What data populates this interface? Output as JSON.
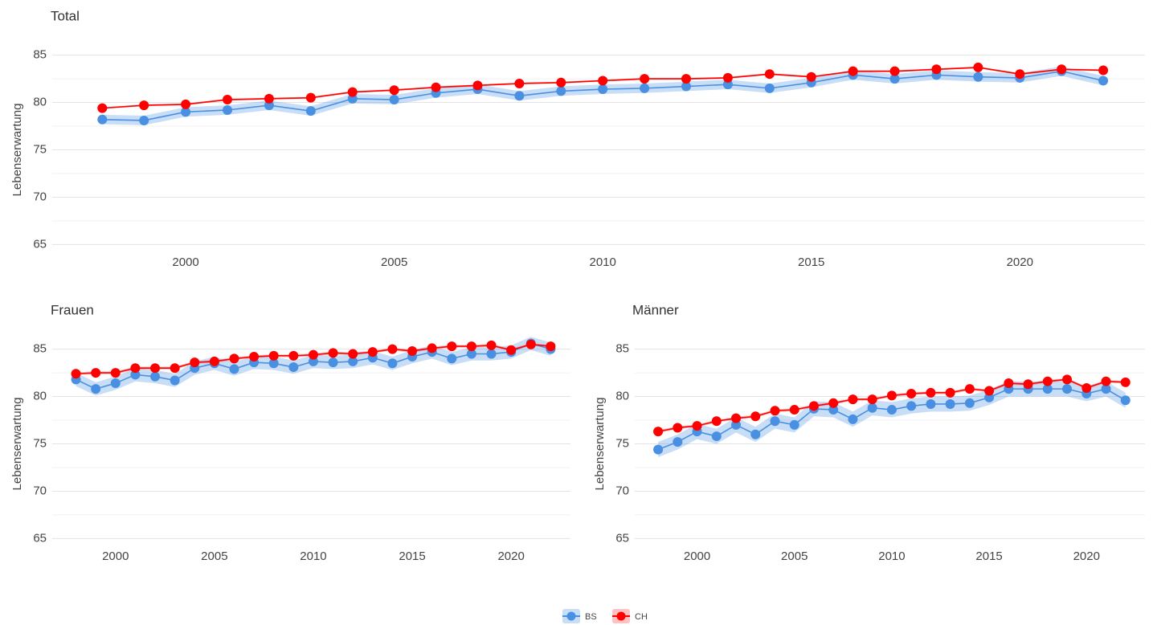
{
  "legend": {
    "items": [
      {
        "name": "BS",
        "color": "#4a90e2",
        "band": "rgba(74,144,226,0.3)"
      },
      {
        "name": "CH",
        "color": "#ff0000",
        "band": "rgba(255,80,80,0.35)"
      }
    ],
    "position": "bottom"
  },
  "chart_data": [
    {
      "type": "line",
      "title": "Total",
      "ylabel": "Lebenserwartung",
      "x": [
        1998,
        1999,
        2000,
        2001,
        2002,
        2003,
        2004,
        2005,
        2006,
        2007,
        2008,
        2009,
        2010,
        2011,
        2012,
        2013,
        2014,
        2015,
        2016,
        2017,
        2018,
        2019,
        2020,
        2021,
        2022
      ],
      "series": [
        {
          "values": [
            78.2,
            78.1,
            79.0,
            79.2,
            79.7,
            79.1,
            80.4,
            80.3,
            81.0,
            81.4,
            80.7,
            81.2,
            81.4,
            81.5,
            81.7,
            81.9,
            81.5,
            82.1,
            82.9,
            82.5,
            82.9,
            82.7,
            82.6,
            83.3,
            82.3
          ],
          "ci": 0.5
        },
        {
          "values": [
            79.4,
            79.7,
            79.8,
            80.3,
            80.4,
            80.5,
            81.1,
            81.3,
            81.6,
            81.8,
            82.0,
            82.1,
            82.3,
            82.5,
            82.5,
            82.6,
            83.0,
            82.7,
            83.3,
            83.3,
            83.5,
            83.7,
            83.0,
            83.5,
            83.4
          ],
          "ci": 0.1
        }
      ],
      "xlim": [
        1996.8,
        2023.0
      ],
      "xticks": [
        2000,
        2005,
        2010,
        2015,
        2020
      ],
      "ylim": [
        64.1,
        85.9
      ],
      "yticks": [
        65,
        70,
        75,
        80,
        85
      ],
      "minor_yticks": [
        67.5,
        72.5,
        77.5,
        82.5
      ],
      "grid": true
    },
    {
      "type": "line",
      "title": "Frauen",
      "ylabel": "Lebenserwartung",
      "x": [
        1998,
        1999,
        2000,
        2001,
        2002,
        2003,
        2004,
        2005,
        2006,
        2007,
        2008,
        2009,
        2010,
        2011,
        2012,
        2013,
        2014,
        2015,
        2016,
        2017,
        2018,
        2019,
        2020,
        2021,
        2022
      ],
      "series": [
        {
          "values": [
            81.8,
            80.8,
            81.4,
            82.3,
            82.1,
            81.7,
            83.0,
            83.5,
            82.9,
            83.6,
            83.5,
            83.1,
            83.7,
            83.6,
            83.7,
            84.1,
            83.5,
            84.2,
            84.7,
            84.0,
            84.5,
            84.5,
            84.7,
            85.6,
            85.0
          ],
          "ci": 0.7
        },
        {
          "values": [
            82.4,
            82.5,
            82.5,
            83.0,
            83.0,
            83.0,
            83.6,
            83.7,
            84.0,
            84.2,
            84.3,
            84.3,
            84.4,
            84.6,
            84.5,
            84.7,
            85.0,
            84.8,
            85.1,
            85.3,
            85.3,
            85.4,
            84.9,
            85.5,
            85.3
          ],
          "ci": 0.15
        }
      ],
      "xlim": [
        1996.8,
        2023.0
      ],
      "xticks": [
        2000,
        2005,
        2010,
        2015,
        2020
      ],
      "ylim": [
        64.1,
        85.9
      ],
      "yticks": [
        65,
        70,
        75,
        80,
        85
      ],
      "minor_yticks": [
        67.5,
        72.5,
        77.5,
        82.5
      ],
      "grid": true
    },
    {
      "type": "line",
      "title": "Männer",
      "ylabel": "Lebenserwartung",
      "x": [
        1998,
        1999,
        2000,
        2001,
        2002,
        2003,
        2004,
        2005,
        2006,
        2007,
        2008,
        2009,
        2010,
        2011,
        2012,
        2013,
        2014,
        2015,
        2016,
        2017,
        2018,
        2019,
        2020,
        2021,
        2022
      ],
      "series": [
        {
          "values": [
            74.4,
            75.2,
            76.3,
            75.8,
            77.0,
            76.0,
            77.4,
            77.0,
            78.7,
            78.6,
            77.6,
            78.8,
            78.6,
            79.0,
            79.2,
            79.2,
            79.3,
            79.9,
            80.8,
            80.8,
            80.8,
            80.8,
            80.3,
            80.8,
            79.6
          ],
          "ci": 0.8
        },
        {
          "values": [
            76.3,
            76.7,
            76.9,
            77.4,
            77.7,
            77.9,
            78.5,
            78.6,
            79.0,
            79.3,
            79.7,
            79.7,
            80.1,
            80.3,
            80.4,
            80.4,
            80.8,
            80.6,
            81.4,
            81.3,
            81.6,
            81.8,
            80.9,
            81.6,
            81.5
          ],
          "ci": 0.15
        }
      ],
      "xlim": [
        1996.8,
        2023.0
      ],
      "xticks": [
        2000,
        2005,
        2010,
        2015,
        2020
      ],
      "ylim": [
        64.1,
        85.9
      ],
      "yticks": [
        65,
        70,
        75,
        80,
        85
      ],
      "minor_yticks": [
        67.5,
        72.5,
        77.5,
        82.5
      ],
      "grid": true
    }
  ]
}
